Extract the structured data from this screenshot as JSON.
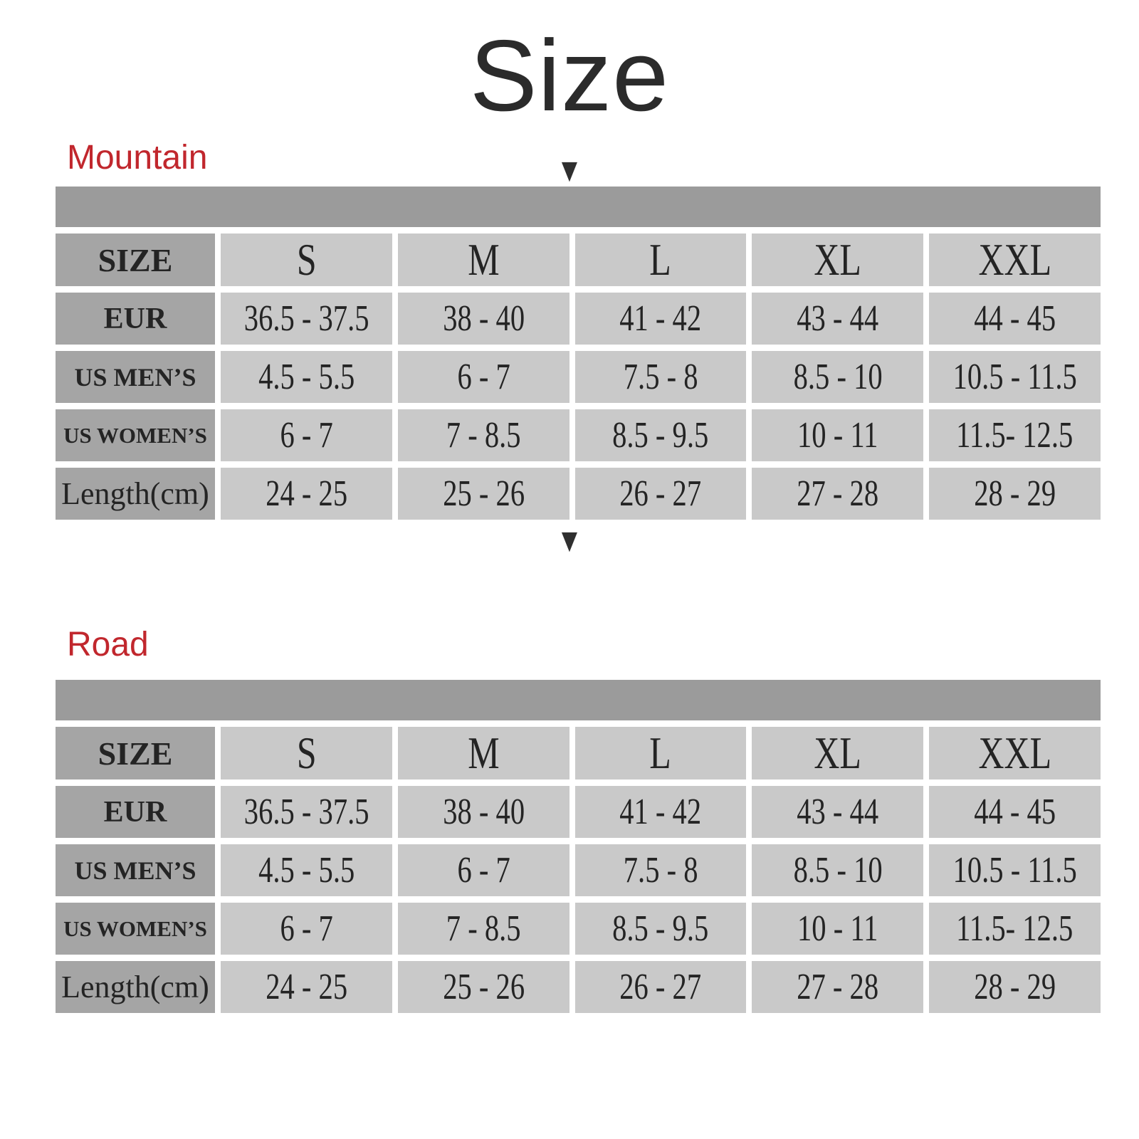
{
  "title": "Size",
  "icons": {
    "down_arrow": "▼"
  },
  "colors": {
    "accent_red": "#c1272d",
    "band_gray": "#9b9b9b",
    "label_cell_gray": "#a5a5a5",
    "value_cell_gray": "#c9c9c9",
    "text_dark": "#2b2b2b",
    "background": "#ffffff"
  },
  "chart_data": [
    {
      "type": "table",
      "title": "Mountain",
      "columns": [
        "SIZE",
        "S",
        "M",
        "L",
        "XL",
        "XXL"
      ],
      "rows": [
        [
          "EUR",
          "36.5 - 37.5",
          "38 - 40",
          "41 - 42",
          "43 - 44",
          "44 - 45"
        ],
        [
          "US MEN’S",
          "4.5 - 5.5",
          "6 - 7",
          "7.5 - 8",
          "8.5 - 10",
          "10.5 - 11.5"
        ],
        [
          "US WOMEN’S",
          "6 - 7",
          "7 - 8.5",
          "8.5 - 9.5",
          "10 - 11",
          "11.5- 12.5"
        ],
        [
          "Length(cm)",
          "24 - 25",
          "25 - 26",
          "26 - 27",
          "27 - 28",
          "28 - 29"
        ]
      ]
    },
    {
      "type": "table",
      "title": "Road",
      "columns": [
        "SIZE",
        "S",
        "M",
        "L",
        "XL",
        "XXL"
      ],
      "rows": [
        [
          "EUR",
          "36.5 - 37.5",
          "38 - 40",
          "41 - 42",
          "43 - 44",
          "44 - 45"
        ],
        [
          "US MEN’S",
          "4.5 - 5.5",
          "6 - 7",
          "7.5 - 8",
          "8.5 - 10",
          "10.5 - 11.5"
        ],
        [
          "US WOMEN’S",
          "6 - 7",
          "7 - 8.5",
          "8.5 - 9.5",
          "10 - 11",
          "11.5- 12.5"
        ],
        [
          "Length(cm)",
          "24 - 25",
          "25 - 26",
          "26 - 27",
          "27 - 28",
          "28 - 29"
        ]
      ]
    }
  ]
}
